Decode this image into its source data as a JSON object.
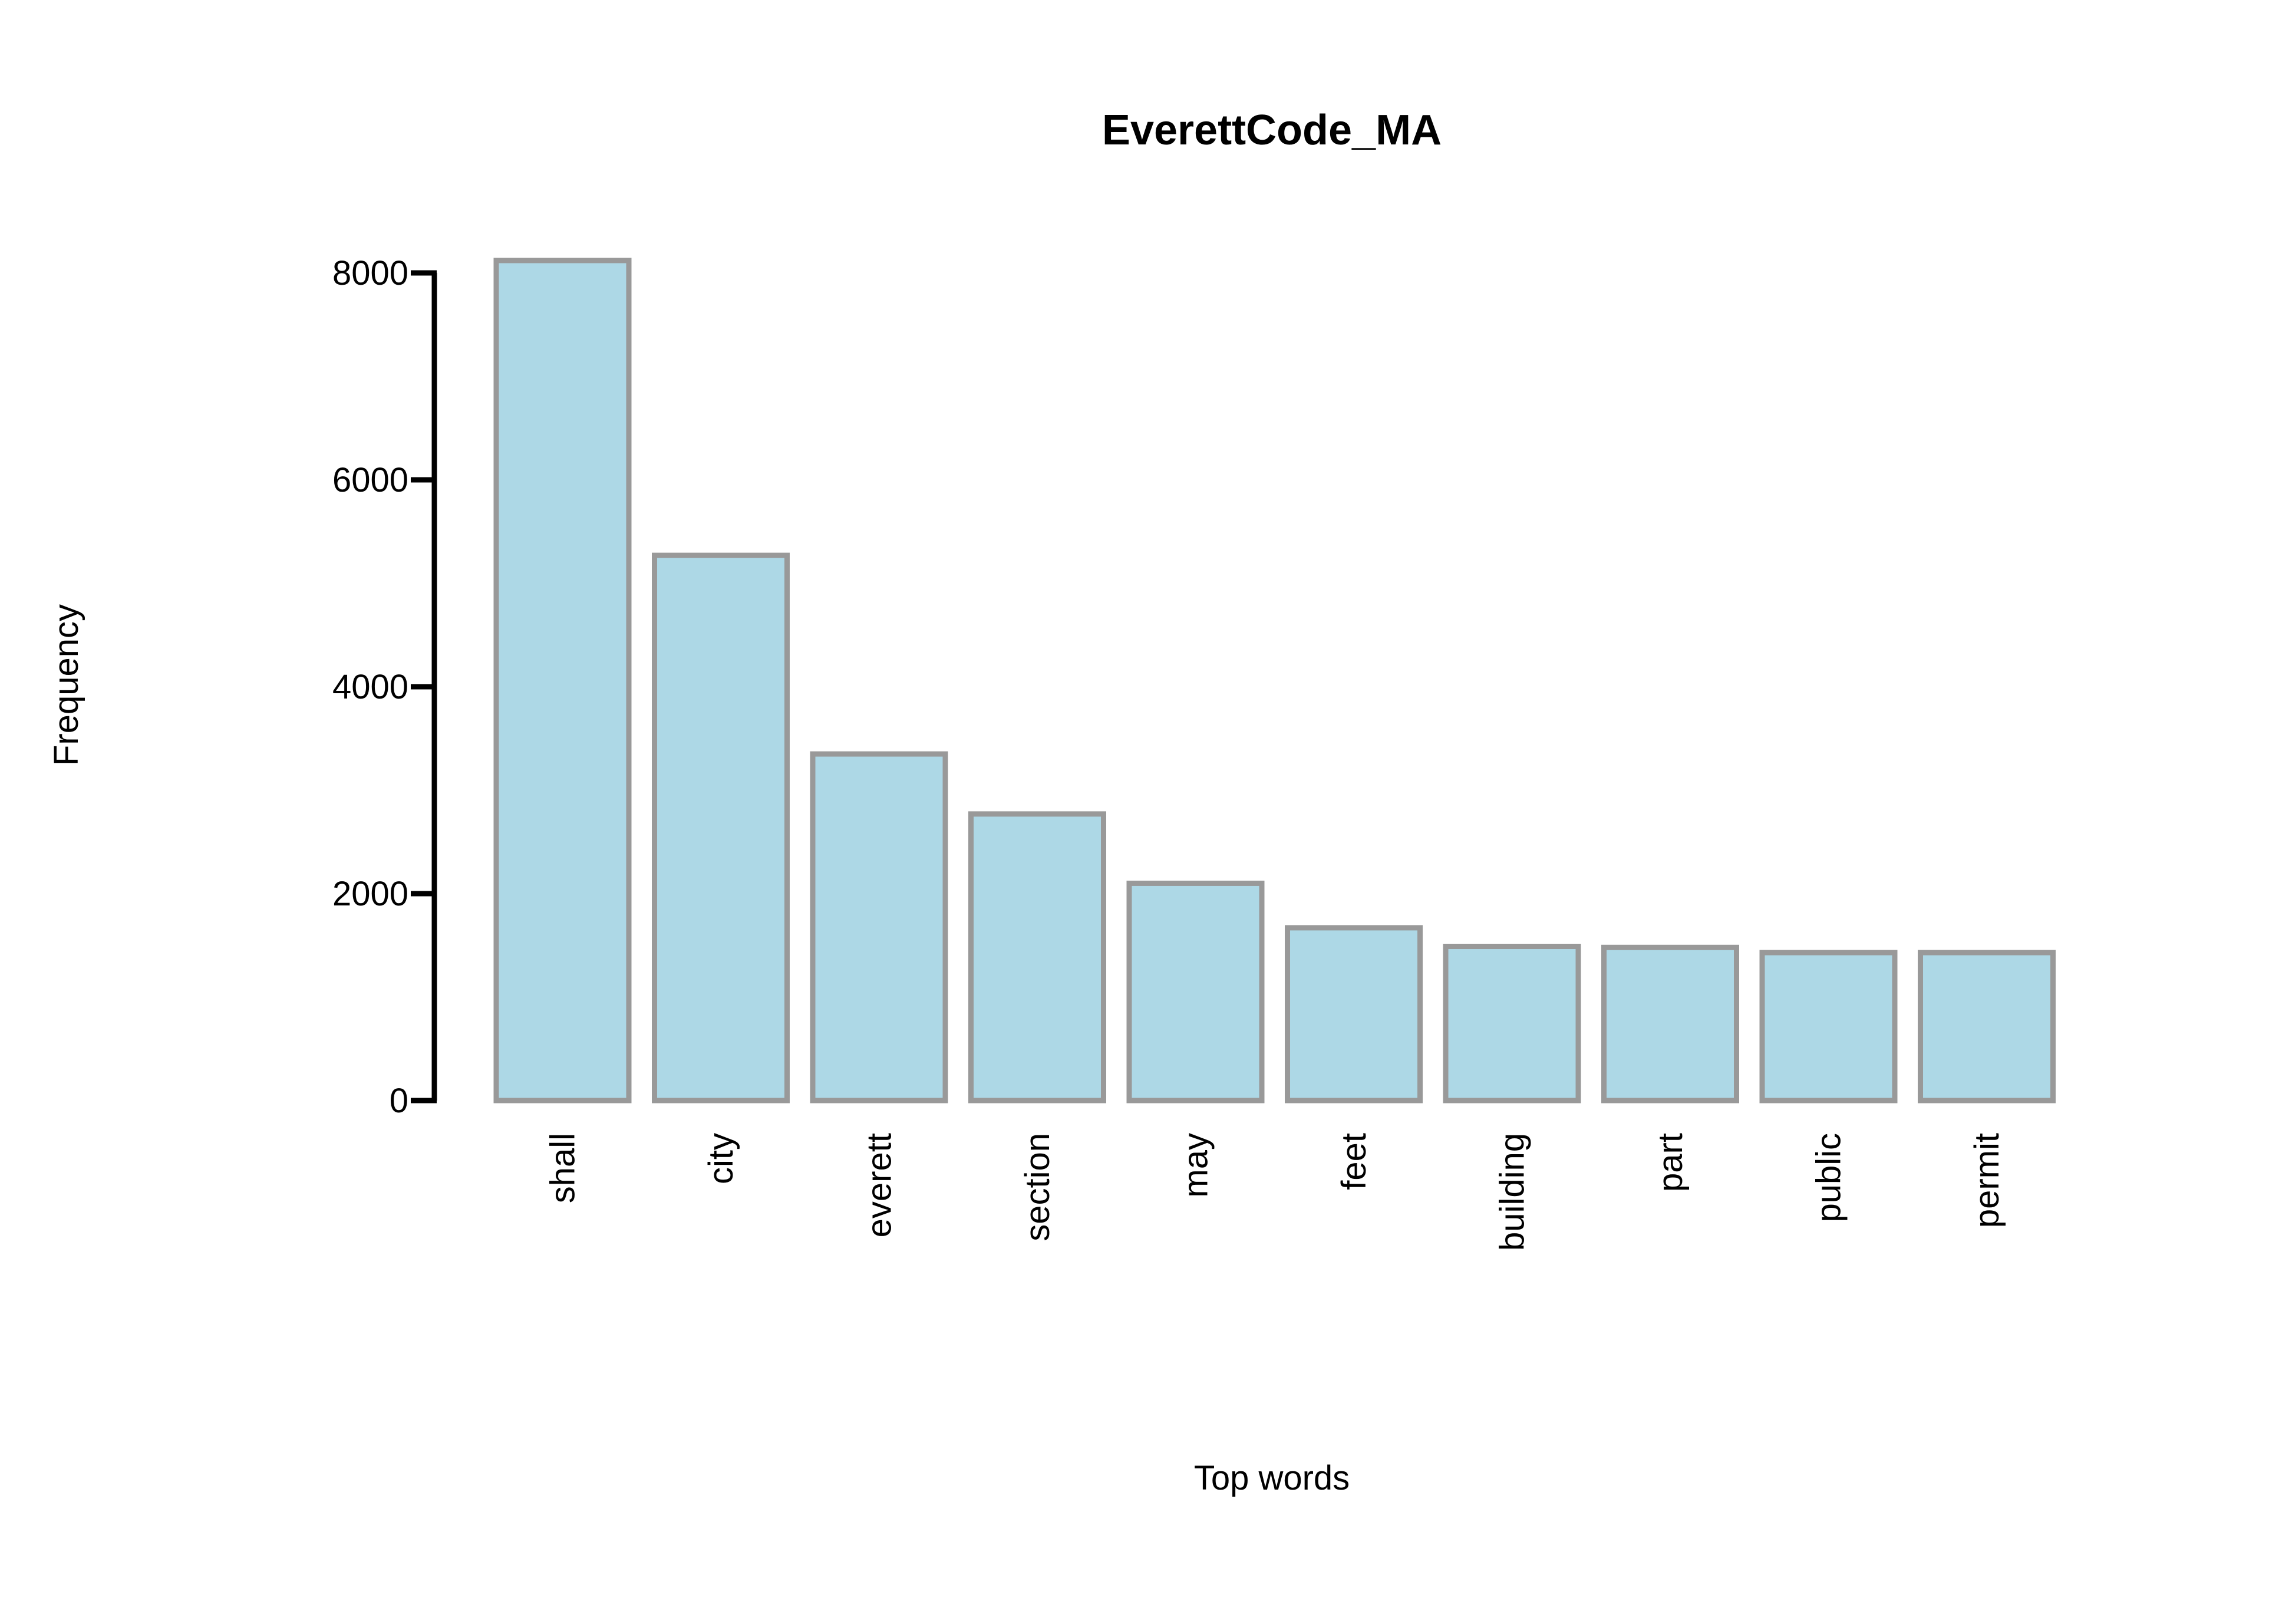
{
  "chart_data": {
    "type": "bar",
    "title": "EverettCode_MA",
    "xlabel": "Top words",
    "ylabel": "Frequency",
    "categories": [
      "shall",
      "city",
      "everett",
      "section",
      "may",
      "feet",
      "building",
      "part",
      "public",
      "permit"
    ],
    "values": [
      8120,
      5270,
      3350,
      2770,
      2100,
      1670,
      1490,
      1480,
      1430,
      1430
    ],
    "yticks": [
      "0",
      "2000",
      "4000",
      "6000",
      "8000"
    ],
    "ylim": [
      0,
      8000
    ],
    "grid": false,
    "legend": "none",
    "colors": {
      "bar_fill": "#add8e6",
      "bar_stroke": "#999999",
      "axis": "#000000"
    }
  }
}
